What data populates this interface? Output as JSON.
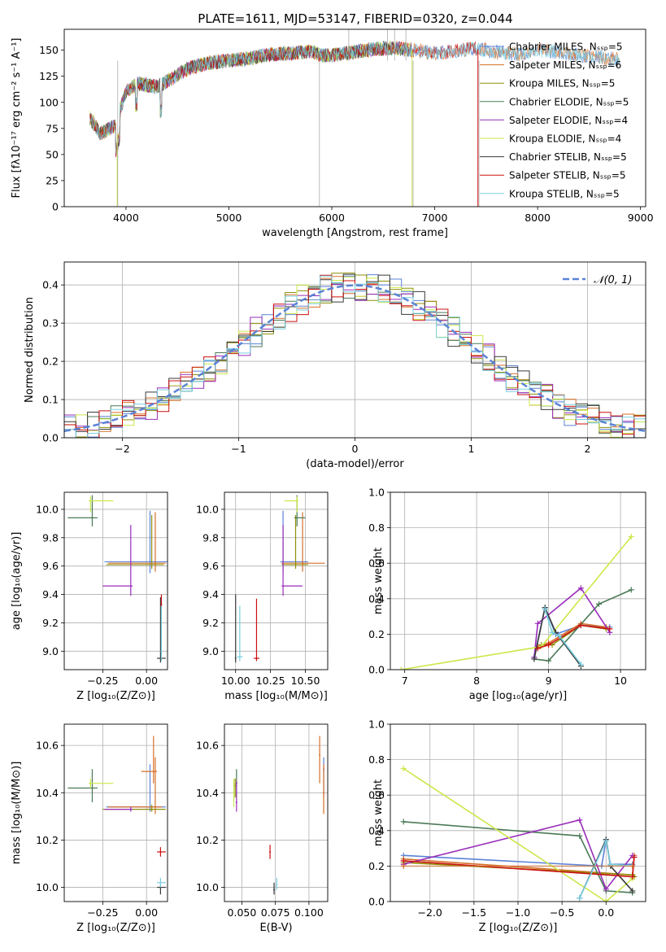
{
  "colors": [
    "#5b83d6",
    "#d6702a",
    "#8f8f0a",
    "#4a7a56",
    "#9a2dba",
    "#cbe84a",
    "#3a3a3a",
    "#cc1010",
    "#79cfe0"
  ],
  "chart_data": [
    {
      "id": "spectrum",
      "type": "line",
      "title": "PLATE=1611, MJD=53147, FIBERID=0320, z=0.044",
      "xlabel": "wavelength [Angstrom, rest frame]",
      "ylabel": "Flux [fλ10⁻¹⁷ erg cm⁻² s⁻¹ A⁻¹]",
      "xlim": [
        3400,
        9050
      ],
      "ylim": [
        0,
        170
      ],
      "xticks": [
        4000,
        5000,
        6000,
        7000,
        8000,
        9000
      ],
      "yticks": [
        0,
        25,
        50,
        75,
        100,
        125,
        150
      ],
      "grid": false,
      "legend": "top-right",
      "series": [
        {
          "name": "Chabrier MILES, N_SSP=5"
        },
        {
          "name": "Salpeter MILES, N_SSP=6"
        },
        {
          "name": "Kroupa MILES, N_SSP=5"
        },
        {
          "name": "Chabrier ELODIE, N_SSP=5"
        },
        {
          "name": "Salpeter ELODIE, N_SSP=4"
        },
        {
          "name": "Kroupa ELODIE, N_SSP=4"
        },
        {
          "name": "Chabrier STELIB, N_SSP=5"
        },
        {
          "name": "Salpeter STELIB, N_SSP=5"
        },
        {
          "name": "Kroupa STELIB, N_SSP=5"
        }
      ],
      "continuum": {
        "x": [
          3650,
          3750,
          3900,
          3950,
          4000,
          4100,
          4300,
          4400,
          4600,
          4800,
          5000,
          5200,
          5400,
          5600,
          5800,
          5900,
          6000,
          6200,
          6400,
          6600,
          6800,
          7000,
          7200,
          7400,
          7600,
          7800,
          8000,
          8200,
          8400,
          8600,
          8800
        ],
        "y": [
          85,
          70,
          78,
          96,
          110,
          118,
          115,
          120,
          132,
          138,
          140,
          142,
          146,
          147,
          149,
          145,
          145,
          148,
          151,
          152,
          150,
          147,
          149,
          152,
          148,
          146,
          150,
          148,
          145,
          143,
          141
        ]
      },
      "spikes": [
        {
          "x": 5880,
          "y": 0
        },
        {
          "x": 6165,
          "y": 170
        },
        {
          "x": 6540,
          "y": 170
        },
        {
          "x": 6610,
          "y": 170
        },
        {
          "x": 6720,
          "y": 170
        },
        {
          "x": 6790,
          "y": 0
        },
        {
          "x": 7430,
          "y": 0
        },
        {
          "x": 3920,
          "y": 0
        }
      ]
    },
    {
      "id": "residuals",
      "type": "line",
      "xlabel": "(data-model)/error",
      "ylabel": "Normed distribution",
      "xlim": [
        -2.5,
        2.5
      ],
      "ylim": [
        0,
        0.46
      ],
      "xticks": [
        -2,
        -1,
        0,
        1,
        2
      ],
      "yticks": [
        0.0,
        0.1,
        0.2,
        0.3,
        0.4
      ],
      "grid": true,
      "legend": "top-right",
      "gaussian_label": "𝒩(0, 1)",
      "bin_width": 0.1,
      "bins_start": -2.5
    },
    {
      "id": "age-vs-Z",
      "type": "scatter",
      "xlabel": "Z [log₁₀(Z/Z⊙)]",
      "ylabel": "age  [log₁₀(age/yr)]",
      "xlim": [
        -0.47,
        0.12
      ],
      "ylim": [
        8.87,
        10.12
      ],
      "xticks": [
        -0.25,
        0.0
      ],
      "xticklabels": [
        "−0.25",
        "0.00"
      ],
      "yticks": [
        9.0,
        9.2,
        9.4,
        9.6,
        9.8,
        10.0
      ],
      "grid": true,
      "points": [
        {
          "c": 0,
          "x": 0.02,
          "y": 9.63,
          "xe": [
            -0.24,
            0.12
          ],
          "ye": [
            9.55,
            9.99
          ]
        },
        {
          "c": 1,
          "x": 0.05,
          "y": 9.62,
          "xe": [
            -0.22,
            0.11
          ],
          "ye": [
            9.56,
            9.98
          ]
        },
        {
          "c": 2,
          "x": 0.03,
          "y": 9.61,
          "xe": [
            -0.23,
            0.1
          ],
          "ye": [
            9.58,
            9.96
          ]
        },
        {
          "c": 3,
          "x": -0.31,
          "y": 9.94,
          "xe": [
            -0.45,
            -0.28
          ],
          "ye": [
            9.88,
            10.1
          ]
        },
        {
          "c": 4,
          "x": -0.09,
          "y": 9.46,
          "xe": [
            -0.25,
            -0.08
          ],
          "ye": [
            9.39,
            9.89
          ]
        },
        {
          "c": 5,
          "x": -0.32,
          "y": 10.06,
          "xe": [
            -0.33,
            -0.19
          ],
          "ye": [
            9.98,
            10.09
          ]
        },
        {
          "c": 6,
          "x": 0.08,
          "y": 8.95,
          "xe": [
            0.06,
            0.11
          ],
          "ye": [
            8.92,
            9.38
          ]
        },
        {
          "c": 7,
          "x": 0.085,
          "y": 9.33,
          "xe": [
            0.085,
            0.085
          ],
          "ye": [
            9.3,
            9.4
          ]
        },
        {
          "c": 8,
          "x": 0.085,
          "y": 9.0,
          "xe": [
            0.085,
            0.085
          ],
          "ye": [
            8.93,
            9.32
          ]
        }
      ]
    },
    {
      "id": "age-vs-mass",
      "type": "scatter",
      "xlabel": "mass [log₁₀(M/M⊙)]",
      "ylabel": "",
      "xlim": [
        9.92,
        10.66
      ],
      "ylim": [
        8.87,
        10.12
      ],
      "xticks": [
        10.0,
        10.25,
        10.5
      ],
      "xticklabels": [
        "10.00",
        "10.25",
        "10.50"
      ],
      "yticks": [
        9.0,
        9.2,
        9.4,
        9.6,
        9.8,
        10.0
      ],
      "grid": true,
      "points": [
        {
          "c": 0,
          "x": 10.34,
          "y": 9.63,
          "xe": [
            10.32,
            10.52
          ],
          "ye": [
            9.55,
            9.99
          ]
        },
        {
          "c": 1,
          "x": 10.48,
          "y": 9.62,
          "xe": [
            10.33,
            10.64
          ],
          "ye": [
            9.56,
            9.98
          ]
        },
        {
          "c": 2,
          "x": 10.43,
          "y": 9.61,
          "xe": [
            10.33,
            10.52
          ],
          "ye": [
            9.58,
            9.96
          ]
        },
        {
          "c": 3,
          "x": 10.44,
          "y": 9.94,
          "xe": [
            10.42,
            10.5
          ],
          "ye": [
            9.88,
            10.1
          ]
        },
        {
          "c": 4,
          "x": 10.34,
          "y": 9.46,
          "xe": [
            10.33,
            10.48
          ],
          "ye": [
            9.39,
            9.89
          ]
        },
        {
          "c": 5,
          "x": 10.44,
          "y": 10.06,
          "xe": [
            10.35,
            10.45
          ],
          "ye": [
            9.98,
            10.09
          ]
        },
        {
          "c": 6,
          "x": 10.0,
          "y": 8.95,
          "xe": [
            10.0,
            10.0
          ],
          "ye": [
            8.92,
            9.4
          ]
        },
        {
          "c": 7,
          "x": 10.15,
          "y": 8.95,
          "xe": [
            10.13,
            10.17
          ],
          "ye": [
            8.93,
            9.37
          ]
        },
        {
          "c": 8,
          "x": 10.03,
          "y": 8.96,
          "xe": [
            10.01,
            10.05
          ],
          "ye": [
            8.93,
            9.32
          ]
        }
      ]
    },
    {
      "id": "massweight-vs-age",
      "type": "line",
      "xlabel": "age  [log₁₀(age/yr)]",
      "ylabel": "mass weight",
      "xlim": [
        6.8,
        10.35
      ],
      "ylim": [
        0,
        1.0
      ],
      "xticks": [
        7,
        8,
        9,
        10
      ],
      "yticks": [
        0.0,
        0.2,
        0.4,
        0.6,
        0.8,
        1.0
      ],
      "grid": true,
      "series": [
        {
          "c": 0,
          "x": [
            8.8,
            8.95,
            9.1,
            9.45,
            9.85
          ],
          "y": [
            0.07,
            0.35,
            0.2,
            0.25,
            0.24
          ]
        },
        {
          "c": 1,
          "x": [
            8.85,
            9.0,
            9.45,
            9.8
          ],
          "y": [
            0.13,
            0.15,
            0.26,
            0.24
          ]
        },
        {
          "c": 2,
          "x": [
            8.9,
            9.05,
            9.45,
            9.8
          ],
          "y": [
            0.14,
            0.14,
            0.25,
            0.23
          ]
        },
        {
          "c": 3,
          "x": [
            8.8,
            9.0,
            9.7,
            10.15
          ],
          "y": [
            0.06,
            0.05,
            0.37,
            0.45
          ]
        },
        {
          "c": 4,
          "x": [
            8.8,
            8.85,
            9.45,
            9.85
          ],
          "y": [
            0.07,
            0.26,
            0.46,
            0.21
          ]
        },
        {
          "c": 5,
          "x": [
            6.95,
            8.9,
            10.15
          ],
          "y": [
            0.0,
            0.13,
            0.75
          ]
        },
        {
          "c": 6,
          "x": [
            8.8,
            8.95,
            9.1,
            9.45
          ],
          "y": [
            0.06,
            0.35,
            0.21,
            0.02
          ]
        },
        {
          "c": 7,
          "x": [
            8.85,
            9.0,
            9.45,
            9.85
          ],
          "y": [
            0.12,
            0.14,
            0.25,
            0.23
          ]
        },
        {
          "c": 8,
          "x": [
            8.95,
            9.05,
            9.15,
            9.45
          ],
          "y": [
            0.34,
            0.21,
            0.19,
            0.03
          ]
        }
      ]
    },
    {
      "id": "mass-vs-Z",
      "type": "scatter",
      "xlabel": "Z [log₁₀(Z/Z⊙)]",
      "ylabel": "mass [log₁₀(M/M⊙)]",
      "xlim": [
        -0.47,
        0.12
      ],
      "ylim": [
        9.94,
        10.69
      ],
      "xticks": [
        -0.25,
        0.0
      ],
      "xticklabels": [
        "−0.25",
        "0.00"
      ],
      "yticks": [
        10.0,
        10.2,
        10.4,
        10.6
      ],
      "grid": true,
      "points": [
        {
          "c": 0,
          "x": 0.02,
          "y": 10.34,
          "xe": [
            -0.23,
            0.11
          ],
          "ye": [
            10.32,
            10.52
          ]
        },
        {
          "c": 1,
          "x": 0.05,
          "y": 10.34,
          "xe": [
            -0.22,
            0.09
          ],
          "ye": [
            10.31,
            10.55
          ]
        },
        {
          "c": 2,
          "x": 0.03,
          "y": 10.33,
          "xe": [
            -0.25,
            0.11
          ],
          "ye": [
            10.32,
            10.35
          ]
        },
        {
          "c": 3,
          "x": -0.31,
          "y": 10.42,
          "xe": [
            -0.45,
            -0.28
          ],
          "ye": [
            10.36,
            10.5
          ]
        },
        {
          "c": 4,
          "x": -0.09,
          "y": 10.33,
          "xe": [
            -0.24,
            -0.08
          ],
          "ye": [
            10.32,
            10.34
          ]
        },
        {
          "c": 5,
          "x": -0.32,
          "y": 10.44,
          "xe": [
            -0.33,
            -0.19
          ],
          "ye": [
            10.42,
            10.46
          ]
        },
        {
          "c": 6,
          "x": 0.08,
          "y": 10.0,
          "xe": [
            0.06,
            0.11
          ],
          "ye": [
            9.97,
            10.01
          ]
        },
        {
          "c": 7,
          "x": 0.08,
          "y": 10.15,
          "xe": [
            0.06,
            0.11
          ],
          "ye": [
            10.13,
            10.17
          ]
        },
        {
          "c": 8,
          "x": 0.08,
          "y": 10.02,
          "xe": [
            0.06,
            0.11
          ],
          "ye": [
            10.0,
            10.04
          ]
        },
        {
          "c": 1,
          "x": 0.04,
          "y": 10.49,
          "xe": [
            -0.03,
            0.06
          ],
          "ye": [
            10.44,
            10.64
          ]
        }
      ]
    },
    {
      "id": "mass-vs-EBV",
      "type": "scatter",
      "xlabel": "E(B-V)",
      "ylabel": "",
      "xlim": [
        0.037,
        0.114
      ],
      "ylim": [
        9.94,
        10.69
      ],
      "xticks": [
        0.05,
        0.075,
        0.1
      ],
      "xticklabels": [
        "0.050",
        "0.075",
        "0.100"
      ],
      "yticks": [
        10.0,
        10.2,
        10.4,
        10.6
      ],
      "grid": true,
      "points": [
        {
          "c": 0,
          "x": 0.111,
          "y": 10.5,
          "ye": [
            10.38,
            10.55
          ]
        },
        {
          "c": 1,
          "x": 0.111,
          "y": 10.4,
          "ye": [
            10.31,
            10.52
          ]
        },
        {
          "c": 2,
          "x": 0.045,
          "y": 10.43,
          "ye": [
            10.38,
            10.46
          ]
        },
        {
          "c": 3,
          "x": 0.046,
          "y": 10.44,
          "ye": [
            10.38,
            10.5
          ]
        },
        {
          "c": 4,
          "x": 0.046,
          "y": 10.36,
          "ye": [
            10.32,
            10.45
          ]
        },
        {
          "c": 5,
          "x": 0.044,
          "y": 10.4,
          "ye": [
            10.34,
            10.46
          ]
        },
        {
          "c": 6,
          "x": 0.074,
          "y": 9.99,
          "ye": [
            9.97,
            10.02
          ]
        },
        {
          "c": 7,
          "x": 0.071,
          "y": 10.15,
          "ye": [
            10.12,
            10.18
          ]
        },
        {
          "c": 8,
          "x": 0.076,
          "y": 10.01,
          "ye": [
            9.99,
            10.04
          ]
        },
        {
          "c": 1,
          "x": 0.108,
          "y": 10.56,
          "ye": [
            10.44,
            10.64
          ]
        }
      ]
    },
    {
      "id": "massweight-vs-Z",
      "type": "line",
      "xlabel": "Z [log₁₀(Z/Z⊙)]",
      "ylabel": "mass weight",
      "xlim": [
        -2.45,
        0.45
      ],
      "ylim": [
        0,
        1.0
      ],
      "xticks": [
        -2.0,
        -1.5,
        -1.0,
        -0.5,
        0.0
      ],
      "xticklabels": [
        "−2.0",
        "−1.5",
        "−1.0",
        "−0.5",
        "0.0"
      ],
      "yticks": [
        0.0,
        0.2,
        0.4,
        0.6,
        0.8,
        1.0
      ],
      "grid": true,
      "series": [
        {
          "c": 0,
          "x": [
            -2.3,
            -0.05,
            0.0,
            0.05,
            0.3
          ],
          "y": [
            0.26,
            0.2,
            0.35,
            0.21,
            0.21
          ]
        },
        {
          "c": 1,
          "x": [
            -2.3,
            0.3,
            0.32
          ],
          "y": [
            0.24,
            0.15,
            0.26
          ]
        },
        {
          "c": 2,
          "x": [
            -2.3,
            0.3,
            0.32
          ],
          "y": [
            0.22,
            0.15,
            0.14
          ]
        },
        {
          "c": 3,
          "x": [
            -2.3,
            -0.3,
            0.0,
            0.3
          ],
          "y": [
            0.45,
            0.37,
            0.06,
            0.05
          ]
        },
        {
          "c": 4,
          "x": [
            -2.3,
            -0.3,
            0.0,
            0.3
          ],
          "y": [
            0.21,
            0.46,
            0.07,
            0.26
          ]
        },
        {
          "c": 5,
          "x": [
            -2.3,
            0.0,
            0.3
          ],
          "y": [
            0.75,
            0.0,
            0.13
          ]
        },
        {
          "c": 6,
          "x": [
            -0.3,
            0.0,
            0.05,
            0.3
          ],
          "y": [
            0.02,
            0.35,
            0.2,
            0.06
          ]
        },
        {
          "c": 7,
          "x": [
            -2.3,
            0.3,
            0.32
          ],
          "y": [
            0.23,
            0.14,
            0.25
          ]
        },
        {
          "c": 8,
          "x": [
            -0.3,
            0.0,
            0.05,
            0.3
          ],
          "y": [
            0.02,
            0.34,
            0.21,
            0.2
          ]
        },
        {
          "c": 1,
          "x": [
            -2.3,
            0.3
          ],
          "y": [
            0.2,
            0.2
          ],
          "faint": true
        }
      ]
    }
  ]
}
